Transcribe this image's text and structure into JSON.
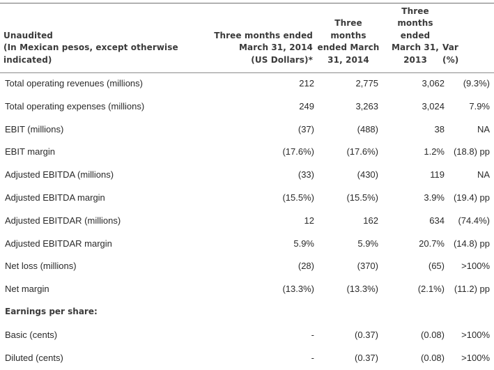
{
  "table": {
    "headers": {
      "description": "Unaudited\n(In Mexican pesos, except otherwise\nindicated)",
      "col_usd": "Three months ended\nMarch 31, 2014\n(US Dollars)*",
      "col_2014": "Three\nmonths\nended March\n31, 2014",
      "col_2013": "Three\nmonths\nended\nMarch 31,\n2013",
      "col_var": "Var\n(%)"
    },
    "rows": [
      {
        "label": "Total operating revenues (millions)",
        "usd": "212",
        "y2014": "2,775",
        "y2013": "3,062",
        "var": "(9.3%)"
      },
      {
        "label": "Total operating expenses (millions)",
        "usd": "249",
        "y2014": "3,263",
        "y2013": "3,024",
        "var": "7.9%"
      },
      {
        "label": "EBIT (millions)",
        "usd": "(37)",
        "y2014": "(488)",
        "y2013": "38",
        "var": "NA"
      },
      {
        "label": "EBIT margin",
        "usd": "(17.6%)",
        "y2014": "(17.6%)",
        "y2013": "1.2%",
        "var": "(18.8) pp"
      },
      {
        "label": "Adjusted EBITDA (millions)",
        "usd": "(33)",
        "y2014": "(430)",
        "y2013": "119",
        "var": "NA"
      },
      {
        "label": "Adjusted EBITDA margin",
        "usd": "(15.5%)",
        "y2014": "(15.5%)",
        "y2013": "3.9%",
        "var": "(19.4) pp"
      },
      {
        "label": "Adjusted EBITDAR (millions)",
        "usd": "12",
        "y2014": "162",
        "y2013": "634",
        "var": "(74.4%)"
      },
      {
        "label": "Adjusted EBITDAR margin",
        "usd": "5.9%",
        "y2014": "5.9%",
        "y2013": "20.7%",
        "var": "(14.8) pp"
      },
      {
        "label": "Net loss (millions)",
        "usd": "(28)",
        "y2014": "(370)",
        "y2013": "(65)",
        "var": ">100%"
      },
      {
        "label": "Net margin",
        "usd": "(13.3%)",
        "y2014": "(13.3%)",
        "y2013": "(2.1%)",
        "var": "(11.2) pp"
      }
    ],
    "eps_section": {
      "label": "Earnings per share:",
      "rows": [
        {
          "label": "Basic (cents)",
          "usd": "-",
          "y2014": "(0.37)",
          "y2013": "(0.08)",
          "var": ">100%"
        },
        {
          "label": "Diluted (cents)",
          "usd": "-",
          "y2014": "(0.37)",
          "y2013": "(0.08)",
          "var": ">100%"
        }
      ]
    }
  }
}
